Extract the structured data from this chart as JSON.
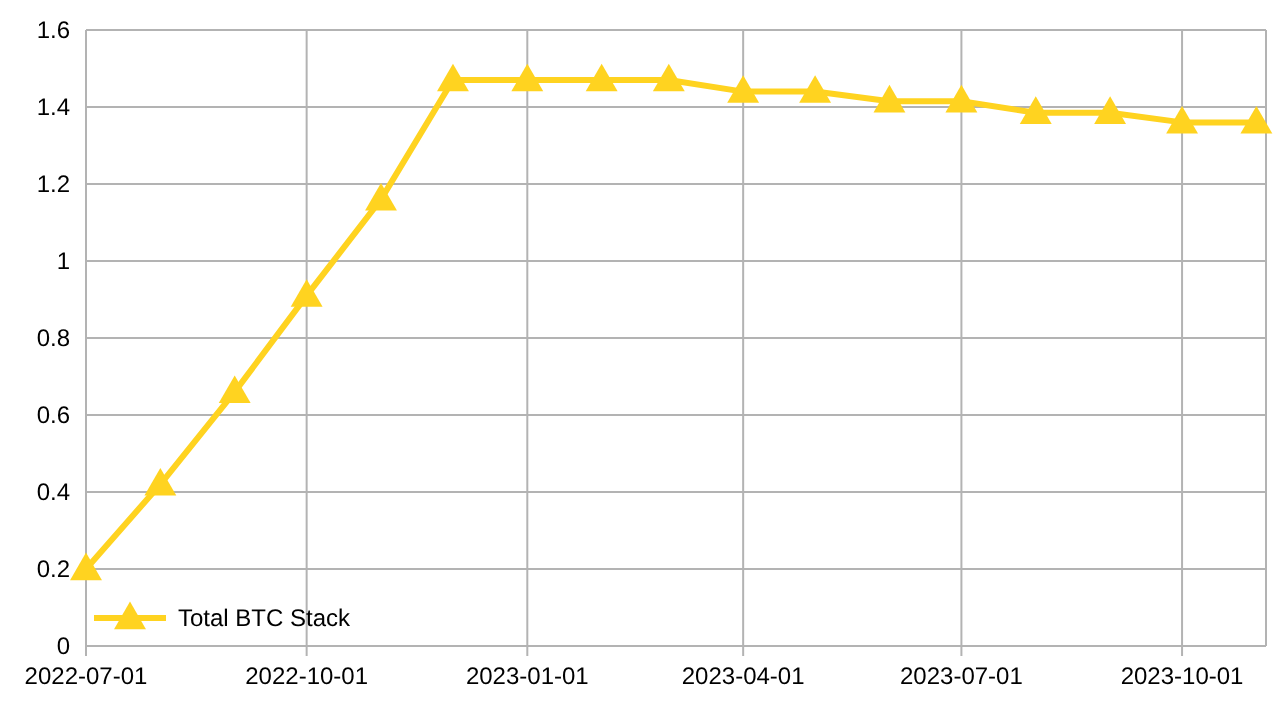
{
  "chart_data": {
    "type": "line",
    "x": [
      "2022-07-01",
      "2022-08-01",
      "2022-09-01",
      "2022-10-01",
      "2022-11-01",
      "2022-12-01",
      "2023-01-01",
      "2023-02-01",
      "2023-03-01",
      "2023-04-01",
      "2023-05-01",
      "2023-06-01",
      "2023-07-01",
      "2023-08-01",
      "2023-09-01",
      "2023-10-01",
      "2023-11-01"
    ],
    "series": [
      {
        "name": "Total BTC Stack",
        "color": "#ffd320",
        "values": [
          0.2,
          0.42,
          0.66,
          0.91,
          1.16,
          1.47,
          1.47,
          1.47,
          1.47,
          1.44,
          1.44,
          1.415,
          1.415,
          1.385,
          1.385,
          1.36,
          1.36
        ]
      }
    ],
    "xlim": [
      "2022-07-01",
      "2023-11-05"
    ],
    "xticks": [
      "2022-07-01",
      "2022-10-01",
      "2023-01-01",
      "2023-04-01",
      "2023-07-01",
      "2023-10-01"
    ],
    "ylim": [
      0,
      1.6
    ],
    "yticks": [
      0,
      0.2,
      0.4,
      0.6,
      0.8,
      1,
      1.2,
      1.4,
      1.6
    ],
    "grid": true,
    "legend": "bottom left",
    "marker": "triangle",
    "line_style": "solid"
  }
}
